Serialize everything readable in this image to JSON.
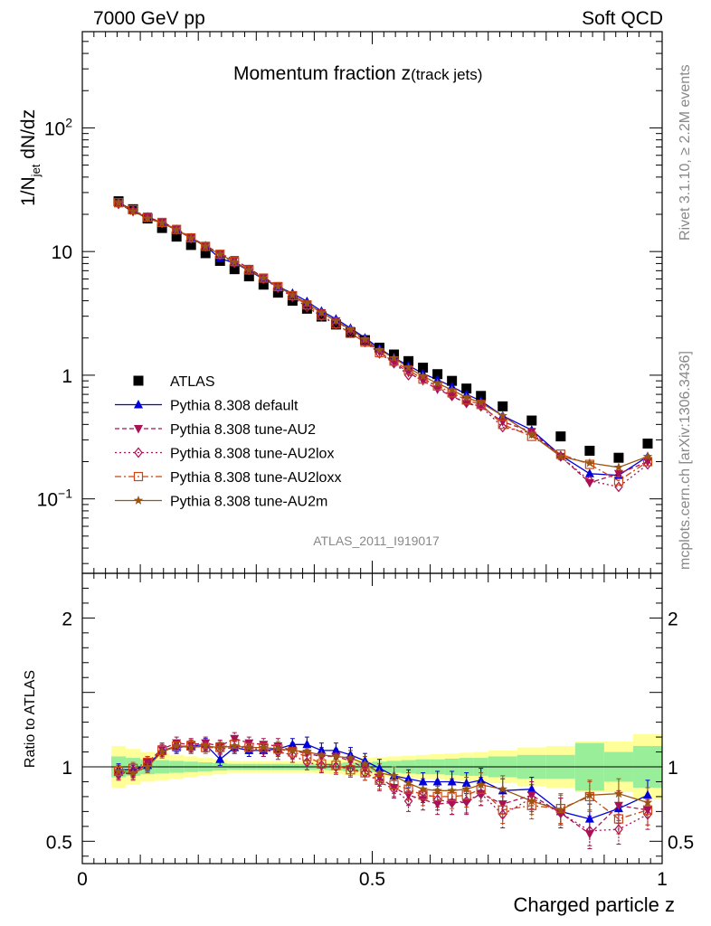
{
  "header": {
    "left": "7000 GeV pp",
    "right": "Soft QCD"
  },
  "side_labels": {
    "rivet": "Rivet 3.1.10, ≥ 2.2M events",
    "mcplots": "mcplots.cern.ch [arXiv:1306.3436]"
  },
  "chart_data": [
    {
      "type": "scatter",
      "title_main": "Momentum fraction z",
      "title_sub": "(track jets)",
      "ylabel_main": "1/N",
      "ylabel_sub": "jet",
      "ylabel_rest": " dN/dz",
      "watermark": "ATLAS_2011_I919017",
      "yscale": "log",
      "xlim": [
        0,
        1
      ],
      "ylim": [
        0.025,
        600
      ],
      "ytick_labels": [
        {
          "value": 0.1,
          "base": "10",
          "exp": "−1"
        },
        {
          "value": 1,
          "base": "1",
          "exp": ""
        },
        {
          "value": 10,
          "base": "10",
          "exp": ""
        },
        {
          "value": 100,
          "base": "10",
          "exp": "2"
        }
      ],
      "legend_position": "bottom-left",
      "x": [
        0.0625,
        0.0875,
        0.1125,
        0.1375,
        0.1625,
        0.1875,
        0.2125,
        0.2375,
        0.2625,
        0.2875,
        0.3125,
        0.3375,
        0.3625,
        0.3875,
        0.4125,
        0.4375,
        0.4625,
        0.4875,
        0.5125,
        0.5375,
        0.5625,
        0.5875,
        0.6125,
        0.6375,
        0.6625,
        0.6875,
        0.725,
        0.775,
        0.825,
        0.875,
        0.925,
        0.975
      ],
      "series": [
        {
          "name": "ATLAS",
          "color": "#000000",
          "marker": "square",
          "line": "none",
          "values": [
            25.5,
            22.0,
            18.5,
            15.5,
            13.2,
            11.3,
            9.7,
            8.4,
            7.2,
            6.3,
            5.4,
            4.65,
            4.0,
            3.45,
            2.98,
            2.57,
            2.22,
            1.92,
            1.67,
            1.47,
            1.3,
            1.15,
            1.02,
            0.9,
            0.78,
            0.68,
            0.56,
            0.43,
            0.32,
            0.245,
            0.215,
            0.28
          ]
        },
        {
          "name": "Pythia 8.308 default",
          "color": "#0000dd",
          "marker": "triangle-up",
          "line": "solid",
          "values": [
            25.0,
            21.5,
            18.6,
            17.1,
            14.9,
            12.9,
            11.1,
            8.8,
            8.1,
            7.0,
            6.0,
            5.2,
            4.6,
            3.95,
            3.3,
            2.85,
            2.4,
            2.0,
            1.65,
            1.38,
            1.2,
            1.03,
            0.92,
            0.81,
            0.7,
            0.62,
            0.47,
            0.36,
            0.225,
            0.16,
            0.155,
            0.22
          ]
        },
        {
          "name": "Pythia 8.308 tune-AU2",
          "color": "#aa1155",
          "marker": "triangle-down",
          "line": "dashed",
          "values": [
            24.5,
            21.0,
            19.0,
            17.3,
            15.3,
            13.0,
            11.2,
            9.6,
            8.6,
            7.3,
            6.2,
            5.3,
            4.45,
            3.75,
            3.2,
            2.75,
            2.3,
            1.9,
            1.55,
            1.27,
            1.05,
            0.9,
            0.77,
            0.68,
            0.59,
            0.56,
            0.42,
            0.35,
            0.22,
            0.135,
            0.16,
            0.2
          ]
        },
        {
          "name": "Pythia 8.308 tune-AU2lox",
          "color": "#aa1155",
          "marker": "diamond-open",
          "line": "dotted",
          "values": [
            24.3,
            21.4,
            18.9,
            17.0,
            15.0,
            12.8,
            11.0,
            9.4,
            8.1,
            7.1,
            6.0,
            5.1,
            4.3,
            3.55,
            3.0,
            2.57,
            2.2,
            1.85,
            1.5,
            1.25,
            1.0,
            0.95,
            0.8,
            0.68,
            0.6,
            0.56,
            0.38,
            0.34,
            0.22,
            0.14,
            0.125,
            0.19
          ]
        },
        {
          "name": "Pythia 8.308 tune-AU2loxx",
          "color": "#cc4411",
          "marker": "square-open",
          "line": "dashdot",
          "values": [
            24.8,
            21.8,
            19.0,
            17.2,
            15.1,
            12.9,
            11.0,
            9.5,
            8.3,
            7.1,
            6.1,
            5.2,
            4.4,
            3.7,
            3.05,
            2.6,
            2.18,
            1.85,
            1.52,
            1.3,
            1.1,
            0.93,
            0.82,
            0.72,
            0.63,
            0.58,
            0.4,
            0.32,
            0.23,
            0.19,
            0.14,
            0.2
          ]
        },
        {
          "name": "Pythia 8.308 tune-AU2m",
          "color": "#995511",
          "marker": "star",
          "line": "solid",
          "values": [
            24.8,
            21.2,
            18.5,
            17.0,
            15.0,
            12.8,
            11.0,
            9.5,
            8.2,
            7.1,
            6.1,
            5.2,
            4.45,
            3.8,
            3.2,
            2.75,
            2.35,
            1.95,
            1.6,
            1.38,
            1.15,
            0.98,
            0.86,
            0.76,
            0.66,
            0.6,
            0.47,
            0.33,
            0.22,
            0.195,
            0.18,
            0.22
          ]
        }
      ]
    },
    {
      "type": "scatter",
      "ylabel": "Ratio to ATLAS",
      "xlabel": "Charged particle z",
      "xlim": [
        0,
        1
      ],
      "ylim": [
        0.35,
        2.3
      ],
      "xtick_labels": [
        {
          "value": 0,
          "label": "0"
        },
        {
          "value": 0.5,
          "label": "0.5"
        },
        {
          "value": 1,
          "label": "1"
        }
      ],
      "ytick_labels": [
        {
          "value": 0.5,
          "label": "0.5"
        },
        {
          "value": 1,
          "label": "1"
        },
        {
          "value": 2,
          "label": "2"
        }
      ],
      "uncertainty_bands": {
        "inner_color": "#99ee99",
        "outer_color": "#ffff99",
        "x_edges": [
          0.05,
          0.075,
          0.1,
          0.125,
          0.15,
          0.175,
          0.2,
          0.225,
          0.25,
          0.275,
          0.3,
          0.325,
          0.35,
          0.375,
          0.4,
          0.425,
          0.45,
          0.475,
          0.5,
          0.525,
          0.55,
          0.575,
          0.6,
          0.625,
          0.65,
          0.675,
          0.7,
          0.75,
          0.8,
          0.85,
          0.9,
          0.95,
          1.0
        ],
        "inner_halfwidth": [
          0.07,
          0.06,
          0.05,
          0.045,
          0.04,
          0.035,
          0.03,
          0.025,
          0.02,
          0.02,
          0.02,
          0.02,
          0.02,
          0.02,
          0.02,
          0.025,
          0.03,
          0.03,
          0.035,
          0.04,
          0.045,
          0.05,
          0.05,
          0.055,
          0.06,
          0.06,
          0.07,
          0.08,
          0.08,
          0.16,
          0.1,
          0.14
        ],
        "outer_halfwidth": [
          0.14,
          0.12,
          0.1,
          0.09,
          0.08,
          0.07,
          0.06,
          0.05,
          0.04,
          0.04,
          0.04,
          0.04,
          0.04,
          0.04,
          0.045,
          0.05,
          0.055,
          0.06,
          0.065,
          0.07,
          0.075,
          0.08,
          0.085,
          0.09,
          0.095,
          0.1,
          0.11,
          0.13,
          0.14,
          0.17,
          0.17,
          0.22
        ]
      },
      "x": [
        0.0625,
        0.0875,
        0.1125,
        0.1375,
        0.1625,
        0.1875,
        0.2125,
        0.2375,
        0.2625,
        0.2875,
        0.3125,
        0.3375,
        0.3625,
        0.3875,
        0.4125,
        0.4375,
        0.4625,
        0.4875,
        0.5125,
        0.5375,
        0.5625,
        0.5875,
        0.6125,
        0.6375,
        0.6625,
        0.6875,
        0.725,
        0.775,
        0.825,
        0.875,
        0.925,
        0.975
      ],
      "series": [
        {
          "name": "Pythia 8.308 default",
          "color": "#0000dd",
          "marker": "triangle-up",
          "line": "solid",
          "values": [
            0.98,
            0.98,
            1.01,
            1.11,
            1.13,
            1.14,
            1.15,
            1.05,
            1.13,
            1.11,
            1.11,
            1.12,
            1.15,
            1.15,
            1.11,
            1.11,
            1.08,
            1.04,
            0.99,
            0.94,
            0.92,
            0.9,
            0.9,
            0.9,
            0.89,
            0.91,
            0.84,
            0.85,
            0.7,
            0.65,
            0.72,
            0.81
          ],
          "errors": [
            0.04,
            0.04,
            0.04,
            0.04,
            0.04,
            0.04,
            0.04,
            0.04,
            0.04,
            0.04,
            0.04,
            0.04,
            0.04,
            0.05,
            0.05,
            0.05,
            0.05,
            0.05,
            0.06,
            0.06,
            0.06,
            0.06,
            0.07,
            0.07,
            0.07,
            0.08,
            0.08,
            0.08,
            0.09,
            0.1,
            0.1,
            0.1
          ]
        },
        {
          "name": "Pythia 8.308 tune-AU2",
          "color": "#aa1155",
          "marker": "triangle-down",
          "line": "dashed",
          "values": [
            0.96,
            0.95,
            1.03,
            1.12,
            1.16,
            1.15,
            1.16,
            1.14,
            1.19,
            1.16,
            1.15,
            1.14,
            1.11,
            1.09,
            1.07,
            1.07,
            1.04,
            0.99,
            0.93,
            0.86,
            0.81,
            0.78,
            0.75,
            0.76,
            0.76,
            0.82,
            0.75,
            0.81,
            0.69,
            0.55,
            0.74,
            0.71
          ],
          "errors": [
            0.04,
            0.04,
            0.04,
            0.04,
            0.04,
            0.04,
            0.04,
            0.04,
            0.04,
            0.04,
            0.04,
            0.05,
            0.05,
            0.05,
            0.05,
            0.05,
            0.05,
            0.05,
            0.06,
            0.06,
            0.07,
            0.07,
            0.07,
            0.08,
            0.08,
            0.08,
            0.09,
            0.09,
            0.1,
            0.1,
            0.1,
            0.1
          ]
        },
        {
          "name": "Pythia 8.308 tune-AU2lox",
          "color": "#aa1155",
          "marker": "diamond-open",
          "line": "dotted",
          "values": [
            0.95,
            0.97,
            1.02,
            1.1,
            1.14,
            1.13,
            1.14,
            1.12,
            1.13,
            1.13,
            1.11,
            1.1,
            1.08,
            1.03,
            1.01,
            1.0,
            0.99,
            0.96,
            0.9,
            0.85,
            0.77,
            0.83,
            0.78,
            0.76,
            0.77,
            0.82,
            0.68,
            0.79,
            0.69,
            0.57,
            0.58,
            0.68
          ],
          "errors": [
            0.04,
            0.04,
            0.04,
            0.04,
            0.04,
            0.04,
            0.04,
            0.04,
            0.04,
            0.04,
            0.04,
            0.05,
            0.05,
            0.05,
            0.05,
            0.05,
            0.05,
            0.05,
            0.06,
            0.06,
            0.07,
            0.07,
            0.07,
            0.08,
            0.08,
            0.08,
            0.09,
            0.09,
            0.1,
            0.1,
            0.1,
            0.1
          ]
        },
        {
          "name": "Pythia 8.308 tune-AU2loxx",
          "color": "#cc4411",
          "marker": "square-open",
          "line": "dashdot",
          "values": [
            0.97,
            0.99,
            1.03,
            1.11,
            1.14,
            1.14,
            1.13,
            1.13,
            1.15,
            1.13,
            1.13,
            1.12,
            1.1,
            1.07,
            1.02,
            1.01,
            0.98,
            0.96,
            0.91,
            0.88,
            0.85,
            0.81,
            0.8,
            0.8,
            0.81,
            0.85,
            0.71,
            0.74,
            0.72,
            0.8,
            0.65,
            0.71
          ],
          "errors": [
            0.04,
            0.04,
            0.04,
            0.04,
            0.04,
            0.04,
            0.04,
            0.04,
            0.04,
            0.04,
            0.04,
            0.05,
            0.05,
            0.05,
            0.05,
            0.05,
            0.05,
            0.05,
            0.06,
            0.06,
            0.07,
            0.07,
            0.07,
            0.08,
            0.08,
            0.08,
            0.09,
            0.09,
            0.1,
            0.1,
            0.1,
            0.1
          ]
        },
        {
          "name": "Pythia 8.308 tune-AU2m",
          "color": "#995511",
          "marker": "star",
          "line": "solid",
          "values": [
            0.97,
            0.96,
            1.0,
            1.1,
            1.14,
            1.13,
            1.14,
            1.13,
            1.14,
            1.13,
            1.13,
            1.12,
            1.11,
            1.1,
            1.08,
            1.07,
            1.06,
            1.02,
            0.96,
            0.94,
            0.89,
            0.85,
            0.84,
            0.84,
            0.85,
            0.88,
            0.85,
            0.77,
            0.71,
            0.81,
            0.82,
            0.76
          ],
          "errors": [
            0.04,
            0.04,
            0.04,
            0.04,
            0.04,
            0.04,
            0.04,
            0.04,
            0.04,
            0.04,
            0.04,
            0.05,
            0.05,
            0.05,
            0.05,
            0.05,
            0.05,
            0.05,
            0.06,
            0.06,
            0.07,
            0.07,
            0.07,
            0.08,
            0.08,
            0.08,
            0.09,
            0.09,
            0.1,
            0.1,
            0.1,
            0.1
          ]
        }
      ]
    }
  ]
}
